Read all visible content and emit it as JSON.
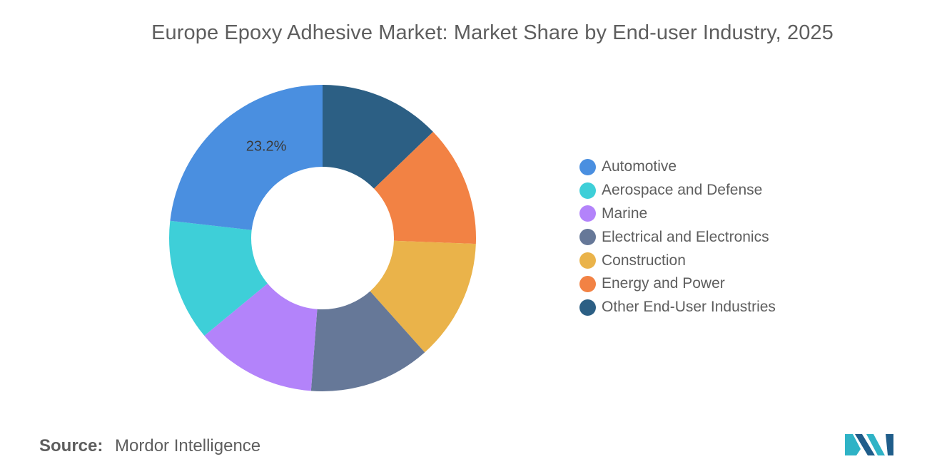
{
  "title": "Europe Epoxy Adhesive Market: Market Share by End-user Industry, 2025",
  "source": {
    "prefix": "Source:",
    "name": "Mordor Intelligence"
  },
  "logo": {
    "icon": "mordor-intelligence-logo",
    "colors": [
      "#2fb3c6",
      "#1f5d8a"
    ]
  },
  "chart_data": {
    "type": "pie",
    "subtype": "donut",
    "start": "top",
    "direction": "clockwise",
    "slices": [
      {
        "name": "Other End-User Industries",
        "value": 12.8,
        "color": "#2c5f84",
        "label": ""
      },
      {
        "name": "Energy and Power",
        "value": 12.8,
        "color": "#f28244",
        "label": ""
      },
      {
        "name": "Construction",
        "value": 12.8,
        "color": "#eab34a",
        "label": ""
      },
      {
        "name": "Electrical and Electronics",
        "value": 12.8,
        "color": "#667898",
        "label": ""
      },
      {
        "name": "Marine",
        "value": 12.8,
        "color": "#b383fa",
        "label": ""
      },
      {
        "name": "Aerospace and Defense",
        "value": 12.8,
        "color": "#3ecfd8",
        "label": ""
      },
      {
        "name": "Automotive",
        "value": 23.2,
        "color": "#4a8fe0",
        "label": "23.2%"
      }
    ],
    "legend": {
      "placement": "right",
      "items": [
        {
          "label": "Automotive",
          "color": "#4a8fe0"
        },
        {
          "label": "Aerospace and Defense",
          "color": "#3ecfd8"
        },
        {
          "label": "Marine",
          "color": "#b383fa"
        },
        {
          "label": "Electrical and Electronics",
          "color": "#667898"
        },
        {
          "label": "Construction",
          "color": "#eab34a"
        },
        {
          "label": "Energy and Power",
          "color": "#f28244"
        },
        {
          "label": "Other End-User Industries",
          "color": "#2c5f84"
        }
      ]
    }
  }
}
